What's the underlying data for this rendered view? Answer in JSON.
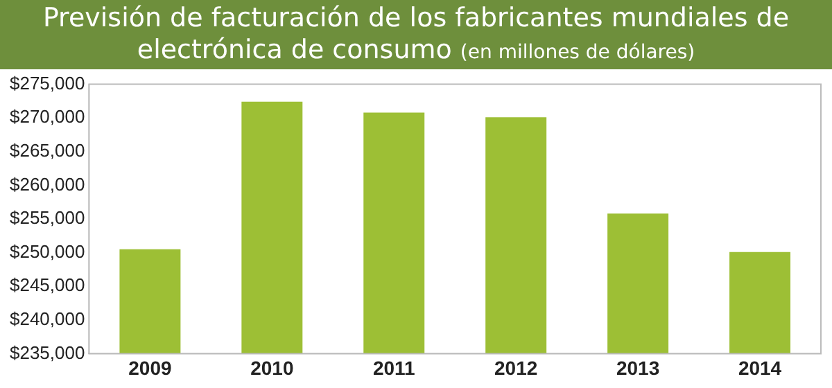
{
  "chart_data": {
    "type": "bar",
    "title": "Previsión de facturación de los fabricantes mundiales de electrónica de consumo",
    "subtitle": "(en millones de dólares)",
    "categories": [
      "2009",
      "2010",
      "2011",
      "2012",
      "2013",
      "2014"
    ],
    "values": [
      250500,
      272400,
      270800,
      270100,
      255800,
      250100
    ],
    "color": "#9dbf35",
    "ylim": [
      235000,
      275000
    ],
    "yticks": [
      {
        "value": 235000,
        "label": "$235,000"
      },
      {
        "value": 240000,
        "label": "$240,000"
      },
      {
        "value": 245000,
        "label": "$245,000"
      },
      {
        "value": 250000,
        "label": "$250,000"
      },
      {
        "value": 255000,
        "label": "$255,000"
      },
      {
        "value": 260000,
        "label": "$260,000"
      },
      {
        "value": 265000,
        "label": "$265,000"
      },
      {
        "value": 270000,
        "label": "$270,000"
      },
      {
        "value": 275000,
        "label": "$275,000"
      }
    ],
    "grid": false,
    "legend": false
  }
}
